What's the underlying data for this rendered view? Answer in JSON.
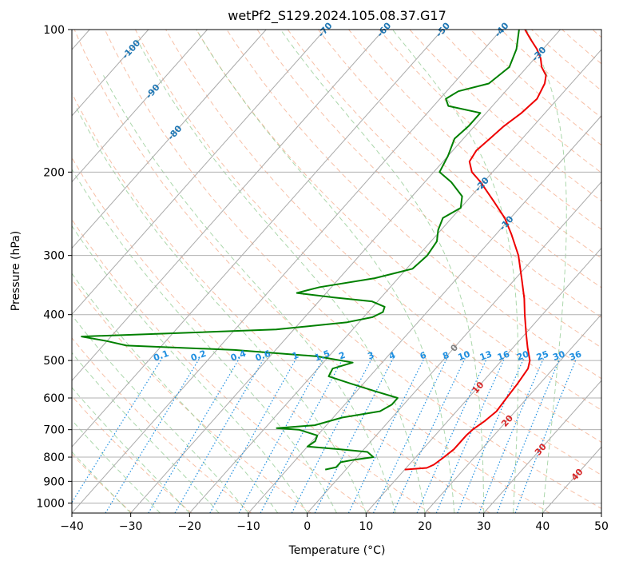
{
  "chart_data": {
    "type": "skew-t",
    "title": "wetPf2_S129.2024.105.08.37.G17",
    "xlabel": "Temperature (°C)",
    "ylabel": "Pressure (hPa)",
    "xlim": [
      -40,
      50
    ],
    "ylim_hpa": [
      1050,
      100
    ],
    "y_scale": "log",
    "grid": true,
    "x_ticks": [
      -40,
      -30,
      -20,
      -10,
      0,
      10,
      20,
      30,
      40,
      50
    ],
    "y_ticks": [
      100,
      200,
      300,
      400,
      500,
      600,
      700,
      800,
      900,
      1000
    ],
    "colors": {
      "temperature": "#ee0000",
      "dewpoint": "#008000",
      "isotherm": "#aaaaaa",
      "dry_adiabat": "#f4a582",
      "moist_adiabat": "#8fc98f",
      "mixing_ratio": "#1f8fe0",
      "isotherm_label_neg": "#1f77b4",
      "isotherm_label_pos": "#d62728"
    },
    "series": [
      {
        "name": "temperature",
        "points": [
          [
            850,
            10.0
          ],
          [
            843,
            13.5
          ],
          [
            830,
            14.2
          ],
          [
            820,
            14.4
          ],
          [
            800,
            14.8
          ],
          [
            770,
            15.3
          ],
          [
            720,
            15.3
          ],
          [
            700,
            15.5
          ],
          [
            670,
            16.3
          ],
          [
            640,
            16.8
          ],
          [
            600,
            16.5
          ],
          [
            560,
            16.2
          ],
          [
            520,
            15.7
          ],
          [
            500,
            14.8
          ],
          [
            470,
            12.5
          ],
          [
            440,
            10.2
          ],
          [
            400,
            7.0
          ],
          [
            370,
            4.5
          ],
          [
            340,
            1.5
          ],
          [
            300,
            -3.0
          ],
          [
            270,
            -7.5
          ],
          [
            250,
            -11.0
          ],
          [
            230,
            -15.5
          ],
          [
            210,
            -20.5
          ],
          [
            200,
            -23.5
          ],
          [
            190,
            -25.5
          ],
          [
            180,
            -26.0
          ],
          [
            170,
            -25.5
          ],
          [
            160,
            -25.0
          ],
          [
            150,
            -24.0
          ],
          [
            140,
            -23.5
          ],
          [
            130,
            -24.5
          ],
          [
            125,
            -25.5
          ],
          [
            120,
            -27.5
          ],
          [
            115,
            -29.0
          ],
          [
            110,
            -31.0
          ],
          [
            105,
            -33.5
          ],
          [
            100,
            -36.0
          ]
        ]
      },
      {
        "name": "dewpoint",
        "points": [
          [
            850,
            -3.5
          ],
          [
            840,
            -2.0
          ],
          [
            820,
            -2.0
          ],
          [
            810,
            0.0
          ],
          [
            800,
            2.8
          ],
          [
            780,
            1.0
          ],
          [
            770,
            -4.0
          ],
          [
            760,
            -10.0
          ],
          [
            740,
            -9.5
          ],
          [
            720,
            -10.0
          ],
          [
            700,
            -14.0
          ],
          [
            695,
            -18.0
          ],
          [
            685,
            -12.0
          ],
          [
            660,
            -8.5
          ],
          [
            640,
            -3.0
          ],
          [
            620,
            -2.0
          ],
          [
            600,
            -2.0
          ],
          [
            580,
            -7.0
          ],
          [
            560,
            -12.0
          ],
          [
            540,
            -17.0
          ],
          [
            520,
            -17.5
          ],
          [
            505,
            -15.0
          ],
          [
            490,
            -22.0
          ],
          [
            475,
            -37.0
          ],
          [
            465,
            -56.0
          ],
          [
            455,
            -60.0
          ],
          [
            445,
            -65.0
          ],
          [
            430,
            -33.0
          ],
          [
            415,
            -22.0
          ],
          [
            405,
            -18.5
          ],
          [
            395,
            -17.5
          ],
          [
            385,
            -18.0
          ],
          [
            375,
            -21.0
          ],
          [
            368,
            -28.0
          ],
          [
            360,
            -35.0
          ],
          [
            350,
            -32.0
          ],
          [
            335,
            -24.0
          ],
          [
            320,
            -19.0
          ],
          [
            300,
            -18.5
          ],
          [
            280,
            -19.0
          ],
          [
            265,
            -20.5
          ],
          [
            250,
            -21.5
          ],
          [
            238,
            -20.0
          ],
          [
            225,
            -21.5
          ],
          [
            210,
            -25.5
          ],
          [
            200,
            -29.0
          ],
          [
            185,
            -30.0
          ],
          [
            170,
            -31.5
          ],
          [
            160,
            -31.0
          ],
          [
            150,
            -31.0
          ],
          [
            145,
            -37.5
          ],
          [
            140,
            -39.0
          ],
          [
            135,
            -38.0
          ],
          [
            130,
            -34.0
          ],
          [
            120,
            -33.0
          ],
          [
            110,
            -34.5
          ],
          [
            100,
            -37.0
          ]
        ]
      }
    ],
    "isotherm_labels": [
      "-100",
      "-90",
      "-80",
      "-70",
      "-60",
      "-50",
      "-40",
      "-30",
      "-20",
      "-10",
      "0",
      "10",
      "20",
      "30",
      "40"
    ],
    "mixing_ratio_labels": [
      "0.1",
      "0.2",
      "0.4",
      "0.6",
      "1",
      "1.5",
      "2",
      "3",
      "4",
      "6",
      "8",
      "10",
      "13",
      "16",
      "20",
      "25",
      "30",
      "36"
    ]
  }
}
